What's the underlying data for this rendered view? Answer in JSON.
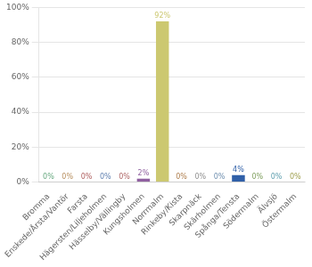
{
  "chart_data": {
    "type": "bar",
    "categories": [
      "Bromma",
      "Enskede/Årsta/Vantör",
      "Farsta",
      "Hägersten/Liljeholmen",
      "Hässelby/Vällingby",
      "Kungsholmen",
      "Norrmalm",
      "Rinkeby/Kista",
      "Skarpnäck",
      "Skärholmen",
      "Spånga/Tensta",
      "Södermalm",
      "Älvsjö",
      "Östermalm"
    ],
    "values": [
      0,
      0,
      0,
      0,
      0,
      2,
      92,
      0,
      0,
      0,
      4,
      0,
      0,
      0
    ],
    "value_labels": [
      "0%",
      "0%",
      "0%",
      "0%",
      "0%",
      "2%",
      "92%",
      "0%",
      "0%",
      "0%",
      "4%",
      "0%",
      "0%",
      "0%"
    ],
    "colors": [
      "#6aaa82",
      "#b89060",
      "#b06060",
      "#6080b0",
      "#b06868",
      "#9060a0",
      "#ccc870",
      "#b08050",
      "#909090",
      "#7090b0",
      "#3060a8",
      "#80a060",
      "#60a0b0",
      "#a0a050"
    ],
    "data_labels": true,
    "ylim": [
      0,
      100
    ],
    "yticks": [
      {
        "value": 0,
        "label": "0%"
      },
      {
        "value": 20,
        "label": "20%"
      },
      {
        "value": 40,
        "label": "40%"
      },
      {
        "value": 60,
        "label": "60%"
      },
      {
        "value": 80,
        "label": "80%"
      },
      {
        "value": 100,
        "label": "100%"
      }
    ],
    "grid": true
  }
}
